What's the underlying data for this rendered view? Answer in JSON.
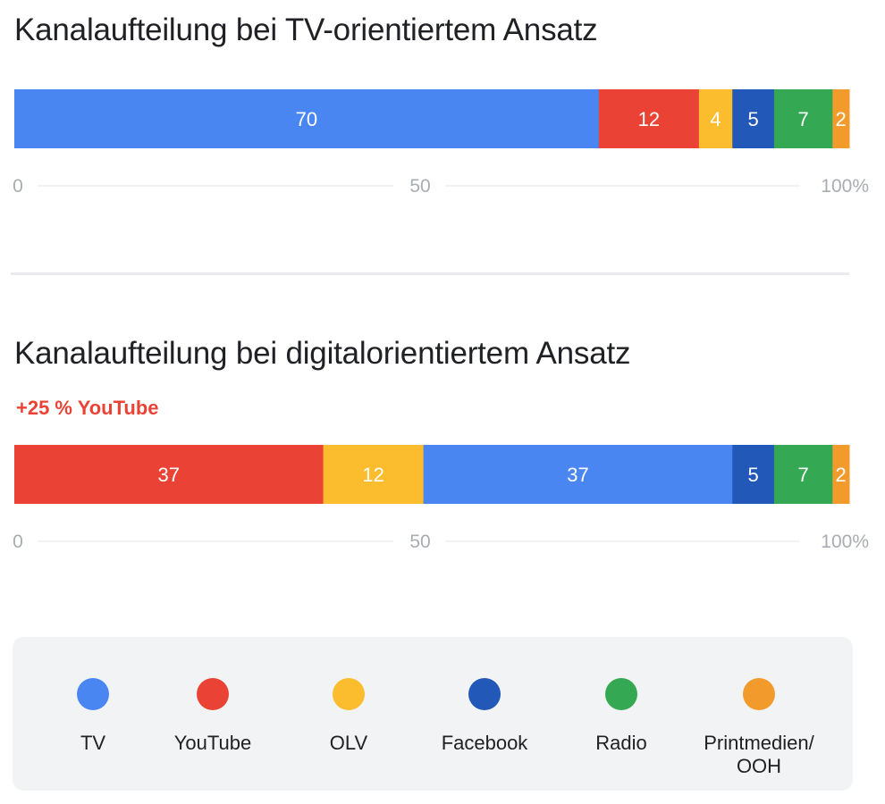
{
  "chart_data": [
    {
      "type": "bar",
      "orientation": "horizontal-stacked",
      "title": "Kanalaufteilung bei TV-orientiertem Ansatz",
      "axis_ticks": [
        "0",
        "50",
        "100%"
      ],
      "xlim": [
        0,
        100
      ],
      "series": [
        {
          "name": "TV",
          "value": 70,
          "label": "70"
        },
        {
          "name": "YouTube",
          "value": 12,
          "label": "12"
        },
        {
          "name": "OLV",
          "value": 4,
          "label": "4"
        },
        {
          "name": "Facebook",
          "value": 5,
          "label": "5"
        },
        {
          "name": "Radio",
          "value": 7,
          "label": "7"
        },
        {
          "name": "Printmedien/ OOH",
          "value": 2,
          "label": "2"
        }
      ]
    },
    {
      "type": "bar",
      "orientation": "horizontal-stacked",
      "title": "Kanalaufteilung bei digitalorientiertem Ansatz",
      "subtitle": "+25 % YouTube",
      "axis_ticks": [
        "0",
        "50",
        "100%"
      ],
      "xlim": [
        0,
        100
      ],
      "series": [
        {
          "name": "YouTube",
          "value": 37,
          "label": "37"
        },
        {
          "name": "OLV",
          "value": 12,
          "label": "12"
        },
        {
          "name": "TV",
          "value": 37,
          "label": "37"
        },
        {
          "name": "Facebook",
          "value": 5,
          "label": "5"
        },
        {
          "name": "Radio",
          "value": 7,
          "label": "7"
        },
        {
          "name": "Printmedien/ OOH",
          "value": 2,
          "label": "2"
        }
      ]
    }
  ],
  "colors": {
    "TV": "#4a86f1",
    "YouTube": "#ea4335",
    "OLV": "#fbbc2e",
    "Facebook": "#2258b8",
    "Radio": "#34a853",
    "Printmedien/ OOH": "#f29b2c"
  },
  "legend": [
    {
      "label": "TV",
      "color": "#4a86f1"
    },
    {
      "label": "YouTube",
      "color": "#ea4335"
    },
    {
      "label": "OLV",
      "color": "#fbbc2e"
    },
    {
      "label": "Facebook",
      "color": "#2258b8"
    },
    {
      "label": "Radio",
      "color": "#34a853"
    },
    {
      "label": "Printmedien/\nOOH",
      "color": "#f29b2c"
    }
  ]
}
